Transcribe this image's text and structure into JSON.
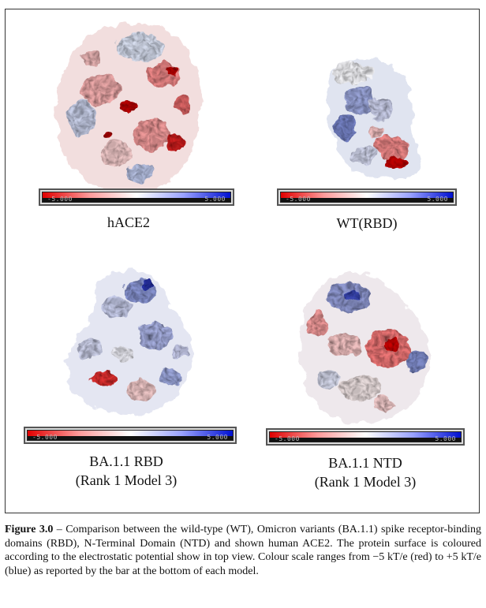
{
  "figure": {
    "panels": [
      {
        "id": "hace2",
        "title": "hACE2",
        "subtitle": "",
        "scale_min": "-5.000",
        "scale_max": "5.000"
      },
      {
        "id": "wt-rbd",
        "title": "WT(RBD)",
        "subtitle": "",
        "scale_min": "-5.000",
        "scale_max": "5.000"
      },
      {
        "id": "ba11-rbd",
        "title": "BA.1.1 RBD",
        "subtitle": "(Rank 1 Model 3)",
        "scale_min": "-5.000",
        "scale_max": "5.000"
      },
      {
        "id": "ba11-ntd",
        "title": "BA.1.1 NTD",
        "subtitle": "(Rank 1 Model 3)",
        "scale_min": "-5.000",
        "scale_max": "5.000"
      }
    ],
    "colors": {
      "negative": "#e00000",
      "neutral": "#ffffff",
      "positive": "#0010d0"
    }
  },
  "caption": {
    "label": "Figure 3.0",
    "text": " – Comparison between the wild-type (WT), Omicron variants (BA.1.1) spike receptor-binding domains (RBD), N-Terminal Domain (NTD) and shown human ACE2. The protein surface is coloured according to the electrostatic potential show in top view. Colour scale ranges from −5 kT/e (red) to +5 kT/e (blue) as reported by the bar at the bottom of each model."
  }
}
